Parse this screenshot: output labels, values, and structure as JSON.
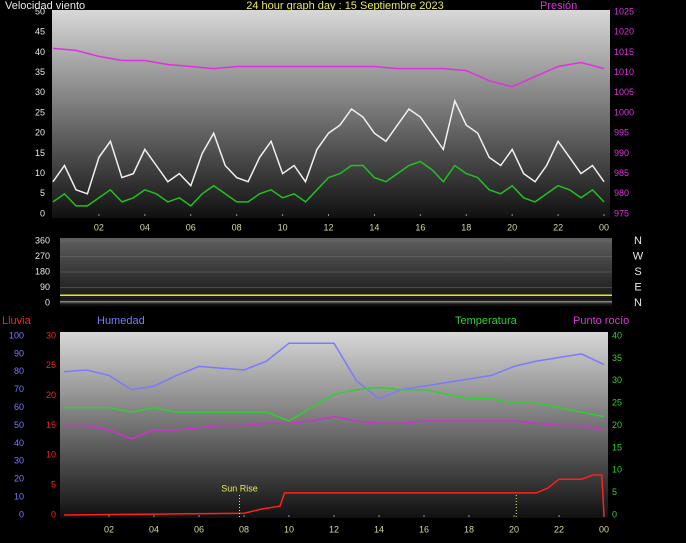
{
  "chart_data": [
    {
      "type": "line",
      "title": "24 hour graph day : 15 Septiembre 2023",
      "ylabel": "Velocidad viento",
      "y2label": "Presión",
      "x": [
        0,
        0.5,
        1,
        1.5,
        2,
        2.5,
        3,
        3.5,
        4,
        4.5,
        5,
        5.5,
        6,
        6.5,
        7,
        7.5,
        8,
        8.5,
        9,
        9.5,
        10,
        10.5,
        11,
        11.5,
        12,
        12.5,
        13,
        13.5,
        14,
        14.5,
        15,
        15.5,
        16,
        16.5,
        17,
        17.5,
        18,
        18.5,
        19,
        19.5,
        20,
        20.5,
        21,
        21.5,
        22,
        22.5,
        23,
        23.5,
        24
      ],
      "xlim": [
        0,
        24
      ],
      "xticks": [
        {
          "value": 2,
          "label": "02"
        },
        {
          "value": 4,
          "label": "04"
        },
        {
          "value": 6,
          "label": "06"
        },
        {
          "value": 8,
          "label": "08"
        },
        10,
        12,
        14,
        16,
        18,
        20,
        22,
        {
          "value": 24,
          "label": "00"
        }
      ],
      "ylim": [
        0,
        50
      ],
      "yticks": [
        0,
        5,
        10,
        15,
        20,
        25,
        30,
        35,
        40,
        45,
        50
      ],
      "y2lim": [
        975,
        1025
      ],
      "y2ticks": [
        975,
        980,
        985,
        990,
        995,
        1000,
        1005,
        1010,
        1015,
        1020,
        1025
      ],
      "series": [
        {
          "color": "#f0f0f0",
          "values": [
            8,
            12,
            6,
            5,
            14,
            18,
            9,
            10,
            16,
            12,
            8,
            10,
            7,
            15,
            20,
            12,
            9,
            8,
            14,
            18,
            10,
            12,
            8,
            16,
            20,
            22,
            26,
            24,
            20,
            18,
            22,
            26,
            24,
            20,
            16,
            28,
            22,
            20,
            14,
            12,
            16,
            10,
            8,
            12,
            18,
            14,
            10,
            12,
            8
          ]
        },
        {
          "color": "#22c022",
          "values": [
            3,
            5,
            2,
            2,
            4,
            6,
            3,
            4,
            6,
            5,
            3,
            4,
            2,
            5,
            7,
            5,
            3,
            3,
            5,
            6,
            4,
            5,
            3,
            6,
            9,
            10,
            12,
            12,
            9,
            8,
            10,
            12,
            13,
            11,
            8,
            12,
            10,
            9,
            6,
            5,
            7,
            4,
            3,
            5,
            7,
            6,
            4,
            6,
            3
          ]
        },
        {
          "name": "Presión",
          "color": "#e030e0",
          "axis": "y2",
          "x": [
            0,
            1,
            2,
            3,
            4,
            5,
            6,
            7,
            8,
            9,
            10,
            11,
            12,
            13,
            14,
            15,
            16,
            17,
            18,
            19,
            20,
            21,
            22,
            23,
            24
          ],
          "values": [
            1016,
            1015.5,
            1014,
            1013,
            1013,
            1012,
            1011.5,
            1011,
            1011.5,
            1011.5,
            1011.5,
            1011.5,
            1011.5,
            1011.5,
            1011.5,
            1011,
            1011,
            1011,
            1010.5,
            1008,
            1006.5,
            1009,
            1011.5,
            1012.5,
            1011
          ]
        }
      ]
    },
    {
      "type": "line",
      "xlim": [
        0,
        24
      ],
      "ylim": [
        0,
        360
      ],
      "yticks": [
        0,
        90,
        180,
        270,
        360
      ],
      "grid": true,
      "direction_labels": [
        "N",
        "W",
        "S",
        "E",
        "N"
      ],
      "x": [
        0,
        24
      ],
      "series": [
        {
          "color": "#808080",
          "values": [
            8,
            8
          ]
        },
        {
          "color": "#e8e820",
          "values": [
            45,
            45
          ]
        }
      ]
    },
    {
      "type": "line",
      "x": [
        0,
        1,
        2,
        3,
        4,
        5,
        6,
        7,
        8,
        9,
        10,
        11,
        12,
        13,
        14,
        15,
        16,
        17,
        18,
        19,
        20,
        21,
        22,
        23,
        24
      ],
      "xlim": [
        0,
        24
      ],
      "xticks": [
        {
          "value": 2,
          "label": "02"
        },
        {
          "value": 4,
          "label": "04"
        },
        {
          "value": 6,
          "label": "06"
        },
        {
          "value": 8,
          "label": "08"
        },
        10,
        12,
        14,
        16,
        18,
        20,
        22,
        {
          "value": 24,
          "label": "00"
        }
      ],
      "ylim": [
        0,
        30
      ],
      "yticks": [
        0,
        5,
        10,
        15,
        20,
        25,
        30
      ],
      "y3lim": [
        0,
        100
      ],
      "y3ticks": [
        0,
        10,
        20,
        30,
        40,
        50,
        60,
        70,
        80,
        90,
        100
      ],
      "y2lim": [
        0,
        40
      ],
      "y2ticks": [
        0,
        5,
        10,
        15,
        20,
        25,
        30,
        35,
        40
      ],
      "series": [
        {
          "name": "Humedad",
          "color": "#7a7aff",
          "axis": "y3",
          "values": [
            80,
            81,
            78,
            70,
            72,
            78,
            83,
            82,
            81,
            86,
            96,
            96,
            96,
            75,
            65,
            70,
            72,
            74,
            76,
            78,
            83,
            86,
            88,
            90,
            84
          ]
        },
        {
          "name": "Temperatura",
          "color": "#30d030",
          "axis": "y2",
          "values": [
            24,
            24,
            24,
            23,
            24,
            23,
            23,
            23,
            23,
            23,
            21,
            24,
            27,
            28,
            28.5,
            28,
            28,
            27,
            26,
            26,
            25,
            25,
            24,
            23,
            22
          ]
        },
        {
          "name": "Punto rocío",
          "color": "#d030d0",
          "axis": "y2",
          "values": [
            20,
            20,
            19,
            17,
            19,
            19,
            19.5,
            20,
            20,
            20.5,
            20.5,
            21,
            22,
            21,
            20.5,
            20.5,
            21,
            21,
            21,
            21,
            21,
            20.5,
            20,
            20,
            19
          ]
        },
        {
          "name": "Lluvia",
          "color": "#ff2020",
          "axis": "y",
          "x": [
            0,
            8,
            8.8,
            9.6,
            9.8,
            21,
            21.5,
            22,
            23,
            23.5,
            23.9,
            24
          ],
          "values": [
            0,
            0.3,
            1,
            1.5,
            3.7,
            3.7,
            4.5,
            6,
            6,
            6.7,
            6.7,
            0
          ]
        }
      ],
      "annotations": [
        {
          "label": "Sun Rise",
          "x": 7.8
        },
        {
          "x": 20.1
        }
      ]
    }
  ]
}
